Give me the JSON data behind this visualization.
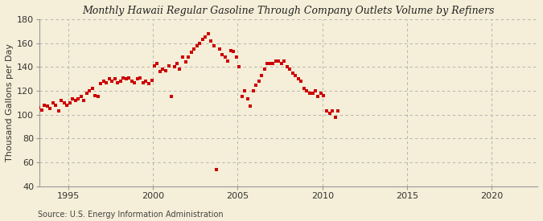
{
  "title": "Monthly Hawaii Regular Gasoline Through Company Outlets Volume by Refiners",
  "ylabel": "Thousand Gallons per Day",
  "source": "Source: U.S. Energy Information Administration",
  "background_color": "#f5eed8",
  "plot_bg_color": "#f5eed8",
  "marker_color": "#cc0000",
  "ylim": [
    40,
    180
  ],
  "yticks": [
    40,
    60,
    80,
    100,
    120,
    140,
    160,
    180
  ],
  "xlim_start": 1993.3,
  "xlim_end": 2022.7,
  "xticks": [
    1995,
    2000,
    2005,
    2010,
    2015,
    2020
  ],
  "data": [
    [
      1993.25,
      106
    ],
    [
      1993.42,
      104
    ],
    [
      1993.58,
      108
    ],
    [
      1993.75,
      107
    ],
    [
      1993.92,
      105
    ],
    [
      1994.08,
      110
    ],
    [
      1994.25,
      108
    ],
    [
      1994.42,
      103
    ],
    [
      1994.58,
      112
    ],
    [
      1994.75,
      110
    ],
    [
      1994.92,
      108
    ],
    [
      1995.08,
      110
    ],
    [
      1995.25,
      113
    ],
    [
      1995.42,
      112
    ],
    [
      1995.58,
      113
    ],
    [
      1995.75,
      115
    ],
    [
      1995.92,
      112
    ],
    [
      1996.08,
      118
    ],
    [
      1996.25,
      120
    ],
    [
      1996.42,
      122
    ],
    [
      1996.58,
      116
    ],
    [
      1996.75,
      115
    ],
    [
      1996.92,
      126
    ],
    [
      1997.08,
      128
    ],
    [
      1997.25,
      127
    ],
    [
      1997.42,
      130
    ],
    [
      1997.58,
      128
    ],
    [
      1997.75,
      130
    ],
    [
      1997.92,
      127
    ],
    [
      1998.08,
      128
    ],
    [
      1998.25,
      131
    ],
    [
      1998.42,
      130
    ],
    [
      1998.58,
      131
    ],
    [
      1998.75,
      128
    ],
    [
      1998.92,
      127
    ],
    [
      1999.08,
      130
    ],
    [
      1999.25,
      131
    ],
    [
      1999.42,
      127
    ],
    [
      1999.58,
      128
    ],
    [
      1999.75,
      126
    ],
    [
      1999.92,
      129
    ],
    [
      2000.08,
      141
    ],
    [
      2000.25,
      143
    ],
    [
      2000.42,
      136
    ],
    [
      2000.58,
      138
    ],
    [
      2000.75,
      137
    ],
    [
      2000.92,
      141
    ],
    [
      2001.08,
      115
    ],
    [
      2001.25,
      140
    ],
    [
      2001.42,
      143
    ],
    [
      2001.58,
      138
    ],
    [
      2001.75,
      148
    ],
    [
      2001.92,
      144
    ],
    [
      2002.08,
      148
    ],
    [
      2002.25,
      152
    ],
    [
      2002.42,
      155
    ],
    [
      2002.58,
      158
    ],
    [
      2002.75,
      160
    ],
    [
      2002.92,
      163
    ],
    [
      2003.08,
      165
    ],
    [
      2003.25,
      168
    ],
    [
      2003.42,
      162
    ],
    [
      2003.58,
      158
    ],
    [
      2003.75,
      54
    ],
    [
      2003.92,
      155
    ],
    [
      2004.08,
      150
    ],
    [
      2004.25,
      148
    ],
    [
      2004.42,
      145
    ],
    [
      2004.58,
      154
    ],
    [
      2004.75,
      153
    ],
    [
      2004.92,
      148
    ],
    [
      2005.08,
      140
    ],
    [
      2005.25,
      115
    ],
    [
      2005.42,
      120
    ],
    [
      2005.58,
      113
    ],
    [
      2005.75,
      107
    ],
    [
      2005.92,
      120
    ],
    [
      2006.08,
      125
    ],
    [
      2006.25,
      128
    ],
    [
      2006.42,
      133
    ],
    [
      2006.58,
      138
    ],
    [
      2006.75,
      143
    ],
    [
      2006.92,
      143
    ],
    [
      2007.08,
      143
    ],
    [
      2007.25,
      145
    ],
    [
      2007.42,
      145
    ],
    [
      2007.58,
      143
    ],
    [
      2007.75,
      145
    ],
    [
      2007.92,
      140
    ],
    [
      2008.08,
      138
    ],
    [
      2008.25,
      135
    ],
    [
      2008.42,
      133
    ],
    [
      2008.58,
      130
    ],
    [
      2008.75,
      128
    ],
    [
      2008.92,
      122
    ],
    [
      2009.08,
      120
    ],
    [
      2009.25,
      118
    ],
    [
      2009.42,
      118
    ],
    [
      2009.58,
      120
    ],
    [
      2009.75,
      115
    ],
    [
      2009.92,
      118
    ],
    [
      2010.08,
      116
    ],
    [
      2010.25,
      103
    ],
    [
      2010.42,
      101
    ],
    [
      2010.58,
      103
    ],
    [
      2010.75,
      98
    ],
    [
      2010.92,
      103
    ]
  ]
}
